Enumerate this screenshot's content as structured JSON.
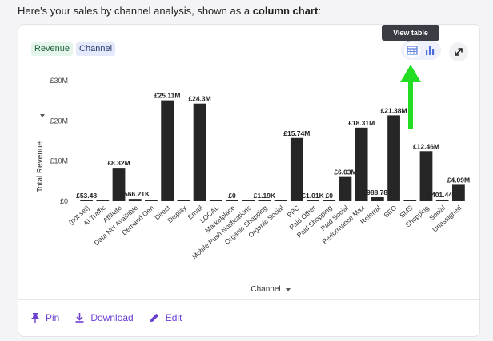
{
  "intro": {
    "prefix": "Here's your sales by channel analysis, shown as a ",
    "emphasis": "column chart",
    "suffix": ":"
  },
  "chips": {
    "measure": "Revenue",
    "dimension": "Channel"
  },
  "tooltip": {
    "view_table": "View table"
  },
  "colors": {
    "bar": "#262626",
    "arrow": "#22dd22",
    "accent": "#6b3fd1"
  },
  "footer": {
    "pin": "Pin",
    "download": "Download",
    "edit": "Edit"
  },
  "chart_data": {
    "type": "bar",
    "xlabel": "Channel",
    "ylabel": "Total Revenue",
    "ylim": [
      0,
      30000000
    ],
    "yticks": [
      0,
      10000000,
      20000000,
      30000000
    ],
    "ytick_labels": [
      "£0",
      "£10M",
      "£20M",
      "£30M"
    ],
    "categories": [
      "(not set)",
      "AI Traffic",
      "Affiliate",
      "Data Not Available",
      "Demand Gen",
      "Direct",
      "Display",
      "Email",
      "LOCAL",
      "Marketplace",
      "Mobile Push Notifications",
      "Organic Shopping",
      "Organic Social",
      "PPC",
      "Paid Other",
      "Paid Shopping",
      "Paid Social",
      "Performance Max",
      "Referral",
      "SEO",
      "SMS",
      "Shopping",
      "Social",
      "Unassigned"
    ],
    "values": [
      53.48,
      0,
      8320000,
      566210,
      0,
      25110000,
      0,
      24300000,
      0,
      0,
      0,
      1190,
      0,
      15740000,
      1010,
      0,
      6030000,
      18310000,
      988780,
      21380000,
      0,
      12460000,
      401440,
      4090000
    ],
    "labels": [
      "£53.48",
      "",
      "£8.32M",
      "£566.21K",
      "",
      "£25.11M",
      "",
      "£24.3M",
      "",
      "£0",
      "",
      "£1.19K",
      "",
      "£15.74M",
      "£1.01K",
      "£0",
      "£6.03M",
      "£18.31M",
      "£988.78K",
      "£21.38M",
      "",
      "£12.46M",
      "£401.44K",
      "£4.09M"
    ],
    "grid": false,
    "legend": "none"
  }
}
